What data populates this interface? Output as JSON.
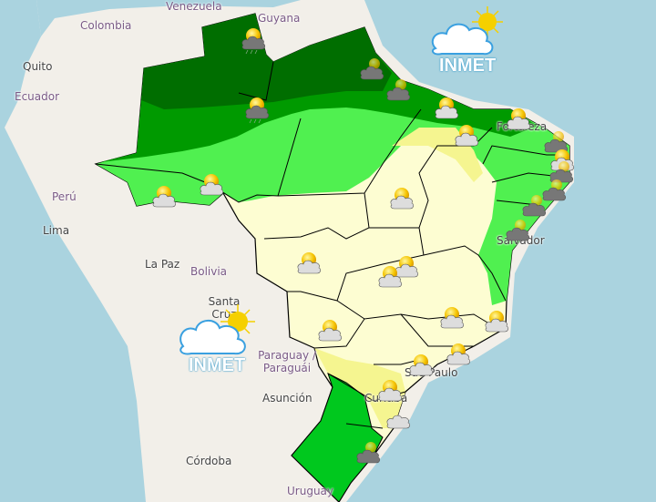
{
  "map": {
    "colors": {
      "sea": "#aad3df",
      "land": "#f2efe9",
      "very_dark_green": "#006e00",
      "dark_green": "#009a00",
      "light_green": "#50f050",
      "bright_green": "#00c81e",
      "pale_yellow": "#fdfdd2",
      "yellow": "#f5f590"
    },
    "country_labels": [
      "Venezuela",
      "Colombia",
      "Guyana",
      "Ecuador",
      "Perú",
      "Bolivia",
      "Paraguay / Paraguái",
      "Uruguay"
    ],
    "city_labels": [
      "Quito",
      "Lima",
      "La Paz",
      "Santa Cruz",
      "Asunción",
      "Córdoba",
      "Salvador",
      "São Paulo",
      "Curitiba",
      "Fortaleza"
    ],
    "weather_icons": [
      {
        "type": "storm-sun",
        "region": "Roraima"
      },
      {
        "type": "storm",
        "region": "Amapá"
      },
      {
        "type": "storm",
        "region": "Pará north"
      },
      {
        "type": "sun-rain",
        "region": "Amazonas"
      },
      {
        "type": "sun-cloud",
        "region": "Maranhão"
      },
      {
        "type": "sun-cloud",
        "region": "Ceará"
      },
      {
        "type": "sun-cloud",
        "region": "Piauí"
      },
      {
        "type": "storm",
        "region": "Rio Grande do Norte"
      },
      {
        "type": "sun-cloud",
        "region": "Paraíba"
      },
      {
        "type": "storm",
        "region": "Pernambuco"
      },
      {
        "type": "storm",
        "region": "Alagoas"
      },
      {
        "type": "storm",
        "region": "Sergipe"
      },
      {
        "type": "sun-cloud",
        "region": "Acre"
      },
      {
        "type": "sun-cloud",
        "region": "Amazonas south"
      },
      {
        "type": "sun-cloud",
        "region": "Tocantins"
      },
      {
        "type": "storm",
        "region": "Bahia coast"
      },
      {
        "type": "sun-cloud",
        "region": "Mato Grosso"
      },
      {
        "type": "sun-cloud",
        "region": "Goiás north"
      },
      {
        "type": "sun-cloud",
        "region": "Goiás"
      },
      {
        "type": "sun-cloud",
        "region": "Minas Gerais"
      },
      {
        "type": "sun-cloud",
        "region": "Espírito Santo"
      },
      {
        "type": "sun-cloud",
        "region": "Mato Grosso do Sul"
      },
      {
        "type": "sun-cloud",
        "region": "Rio de Janeiro"
      },
      {
        "type": "sun-cloud",
        "region": "São Paulo"
      },
      {
        "type": "sun-cloud",
        "region": "Paraná"
      },
      {
        "type": "cloud",
        "region": "Santa Catarina"
      },
      {
        "type": "storm",
        "region": "Rio Grande do Sul"
      }
    ]
  },
  "logos": {
    "top_right": "INMET",
    "bottom_left": "INMET"
  }
}
